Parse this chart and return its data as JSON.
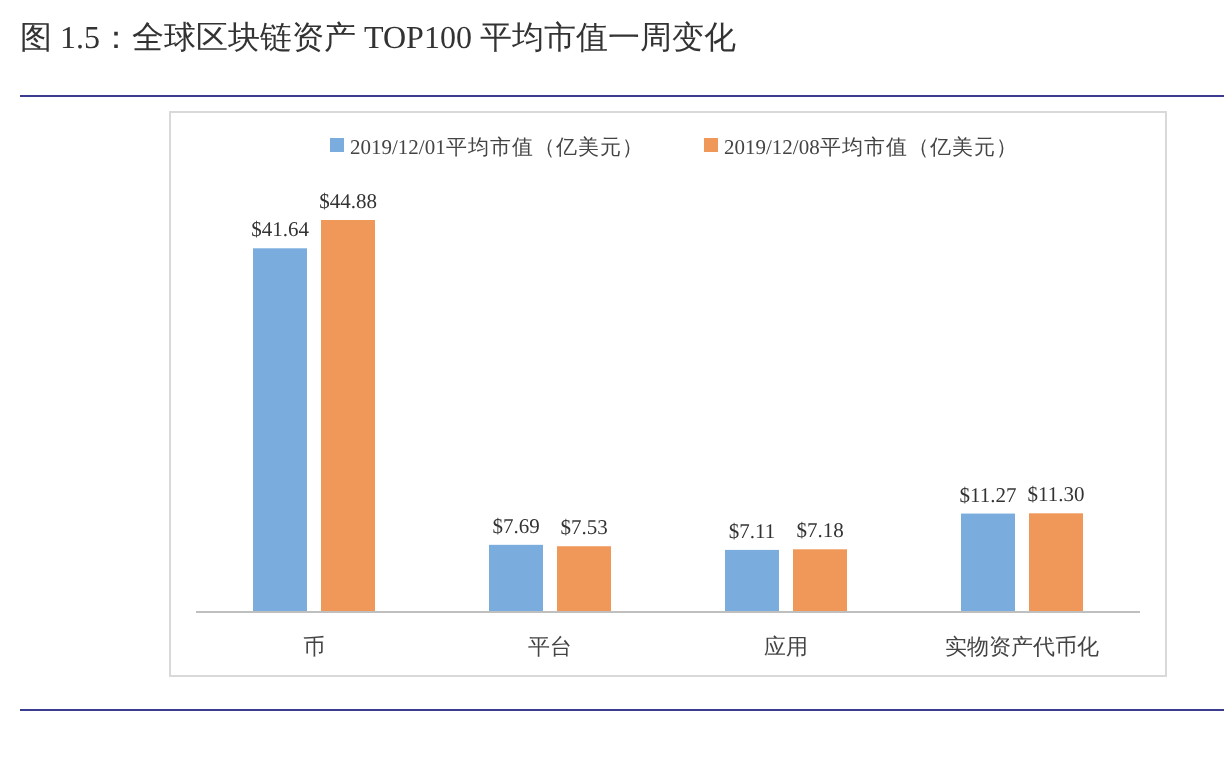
{
  "chart_data": {
    "type": "bar",
    "title": "图 1.5：全球区块链资产 TOP100 平均市值一周变化",
    "categories": [
      "币",
      "平台",
      "应用",
      "实物资产代币化"
    ],
    "series": [
      {
        "name": "2019/12/01平均市值（亿美元）",
        "color": "#7aaddd",
        "values": [
          41.64,
          7.69,
          7.11,
          11.27
        ],
        "value_labels": [
          "$41.64",
          "$7.69",
          "$7.11",
          "$11.27"
        ]
      },
      {
        "name": "2019/12/08平均市值（亿美元）",
        "color": "#f0985a",
        "values": [
          44.88,
          7.53,
          7.18,
          11.3
        ],
        "value_labels": [
          "$44.88",
          "$7.53",
          "$7.18",
          "$11.30"
        ]
      }
    ],
    "legend": "top",
    "grid": false
  }
}
